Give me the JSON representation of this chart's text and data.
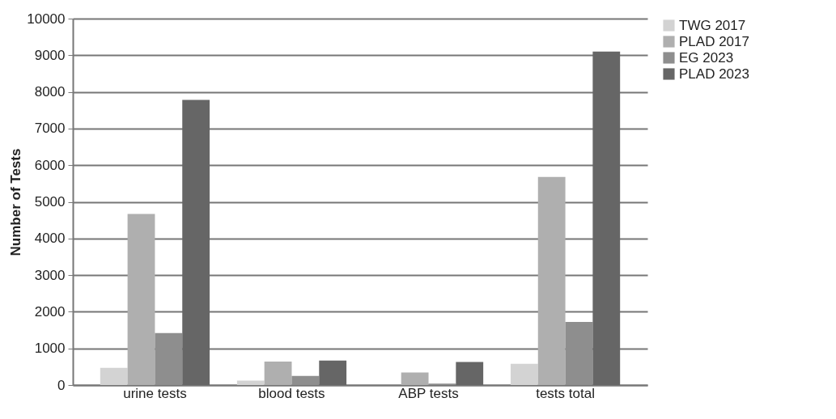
{
  "chart_data": {
    "type": "bar",
    "ylabel": "Number of Tests",
    "categories": [
      "urine tests",
      "blood tests",
      "ABP tests",
      "tests total"
    ],
    "series": [
      {
        "name": "TWG 2017",
        "color": "#d3d3d3",
        "values": [
          470,
          120,
          0,
          580
        ]
      },
      {
        "name": "PLAD 2017",
        "color": "#afafaf",
        "values": [
          4670,
          640,
          340,
          5680
        ]
      },
      {
        "name": "EG 2023",
        "color": "#8e8e8e",
        "values": [
          1420,
          250,
          40,
          1720
        ]
      },
      {
        "name": "PLAD 2023",
        "color": "#666666",
        "values": [
          7780,
          670,
          630,
          9100
        ]
      }
    ],
    "ylim": [
      0,
      10000
    ],
    "yticks": [
      0,
      1000,
      2000,
      3000,
      4000,
      5000,
      6000,
      7000,
      8000,
      9000,
      10000
    ],
    "grid": "y",
    "legend": "right"
  }
}
